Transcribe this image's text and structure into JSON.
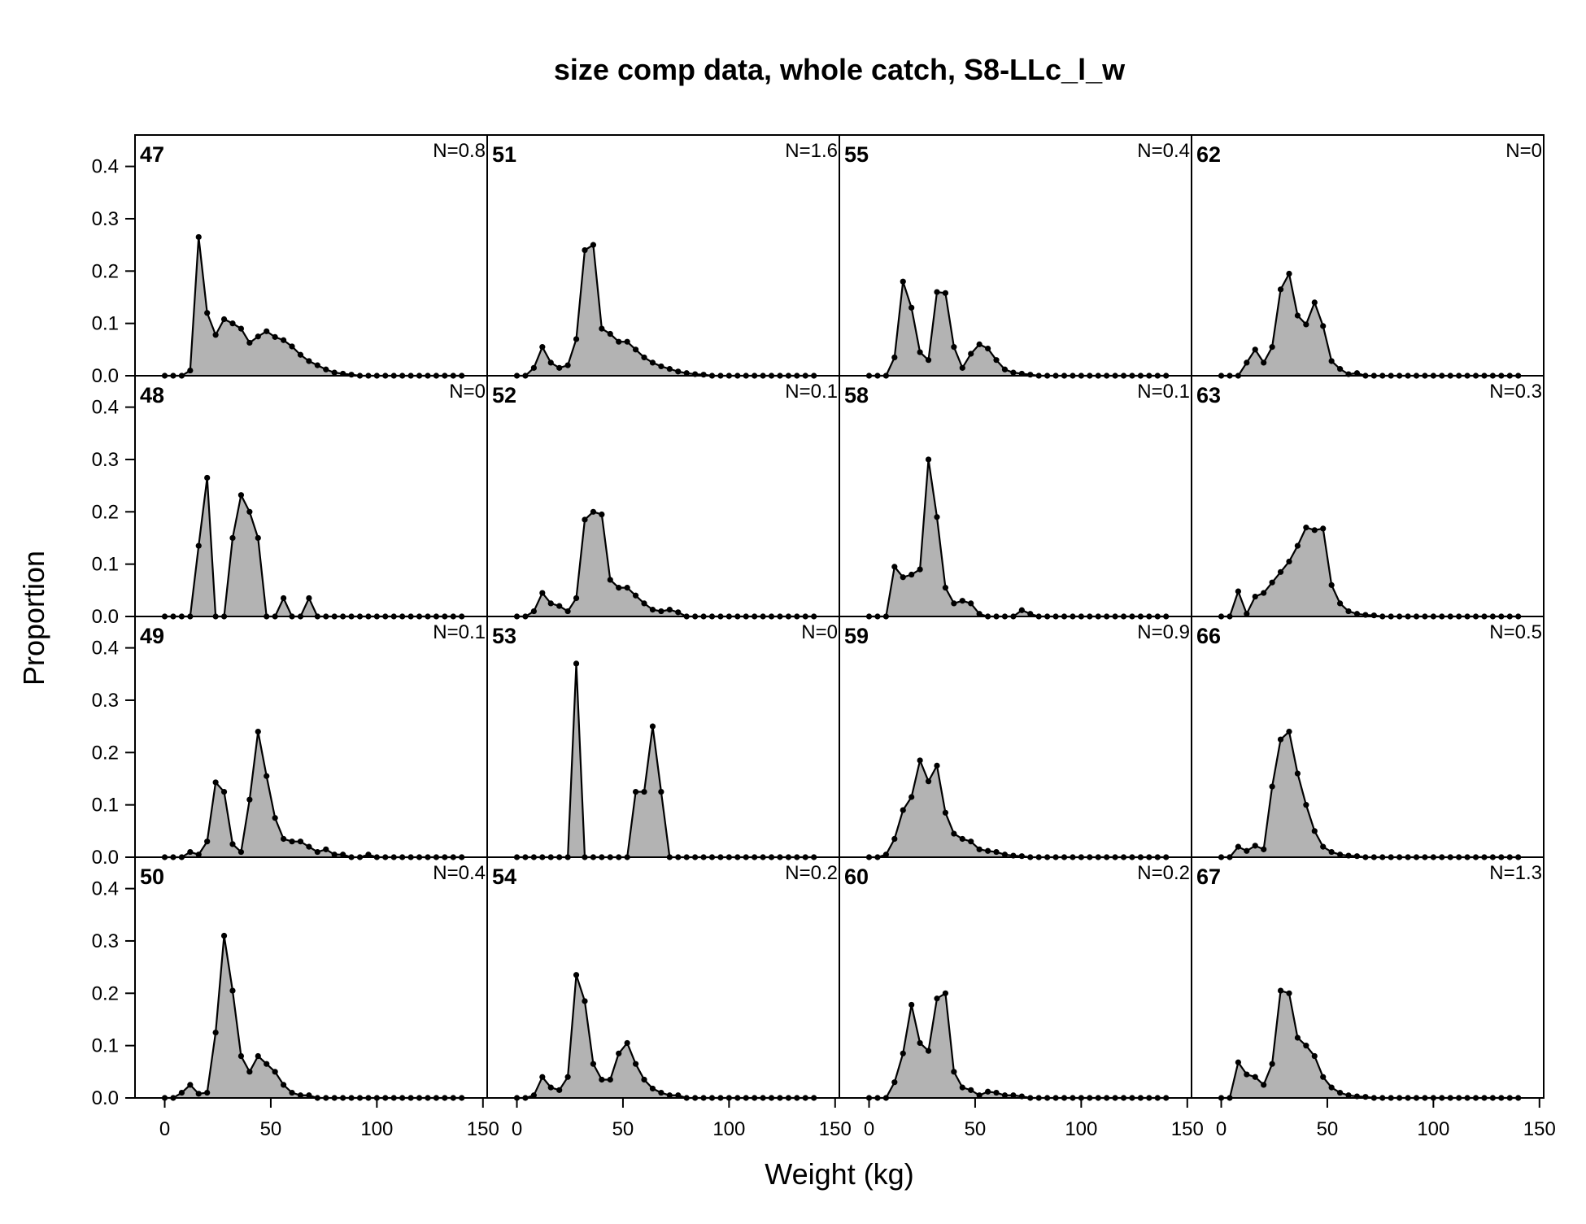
{
  "chart_data": {
    "type": "area",
    "title": "size comp data, whole catch, S8-LLc_l_w",
    "xlabel": "Weight (kg)",
    "ylabel": "Proportion",
    "xlim": [
      -14,
      152
    ],
    "ylim": [
      0,
      0.46
    ],
    "xticks": [
      0,
      50,
      100,
      150
    ],
    "yticks": [
      0.0,
      0.1,
      0.2,
      0.3,
      0.4
    ],
    "ytick_labels": [
      "0.0",
      "0.1",
      "0.2",
      "0.3",
      "0.4"
    ],
    "layout": "4 rows x 4 columns, panels filled column-wise",
    "fill_color": "#b3b3b3",
    "line_color": "#000000",
    "x": [
      0,
      4,
      8,
      12,
      16,
      20,
      24,
      28,
      32,
      36,
      40,
      44,
      48,
      52,
      56,
      60,
      64,
      68,
      72,
      76,
      80,
      84,
      88,
      92,
      96,
      100,
      104,
      108,
      112,
      116,
      120,
      124,
      128,
      132,
      136,
      140
    ],
    "panels": [
      {
        "id": "47",
        "n_label": "N=0.8",
        "values": [
          0,
          0,
          0,
          0.01,
          0.265,
          0.12,
          0.078,
          0.108,
          0.1,
          0.09,
          0.063,
          0.075,
          0.085,
          0.074,
          0.068,
          0.056,
          0.04,
          0.028,
          0.02,
          0.012,
          0.006,
          0.004,
          0.002,
          0,
          0,
          0,
          0,
          0,
          0,
          0,
          0,
          0,
          0,
          0,
          0,
          0
        ]
      },
      {
        "id": "48",
        "n_label": "N=0",
        "values": [
          0,
          0,
          0,
          0,
          0.135,
          0.265,
          0,
          0,
          0.15,
          0.232,
          0.2,
          0.15,
          0,
          0,
          0.035,
          0,
          0,
          0.035,
          0,
          0,
          0,
          0,
          0,
          0,
          0,
          0,
          0,
          0,
          0,
          0,
          0,
          0,
          0,
          0,
          0,
          0
        ]
      },
      {
        "id": "49",
        "n_label": "N=0.1",
        "values": [
          0,
          0,
          0,
          0.01,
          0.005,
          0.03,
          0.143,
          0.125,
          0.025,
          0.01,
          0.11,
          0.24,
          0.155,
          0.075,
          0.035,
          0.03,
          0.03,
          0.02,
          0.01,
          0.015,
          0.005,
          0.005,
          0,
          0,
          0.005,
          0,
          0,
          0,
          0,
          0,
          0,
          0,
          0,
          0,
          0,
          0
        ]
      },
      {
        "id": "50",
        "n_label": "N=0.4",
        "values": [
          0,
          0,
          0.01,
          0.025,
          0.008,
          0.01,
          0.125,
          0.31,
          0.205,
          0.08,
          0.05,
          0.08,
          0.065,
          0.05,
          0.025,
          0.01,
          0.005,
          0.005,
          0,
          0,
          0,
          0,
          0,
          0,
          0,
          0,
          0,
          0,
          0,
          0,
          0,
          0,
          0,
          0,
          0,
          0
        ]
      },
      {
        "id": "51",
        "n_label": "N=1.6",
        "values": [
          0,
          0,
          0.015,
          0.055,
          0.025,
          0.015,
          0.02,
          0.07,
          0.24,
          0.25,
          0.09,
          0.08,
          0.065,
          0.065,
          0.05,
          0.035,
          0.025,
          0.018,
          0.013,
          0.008,
          0.005,
          0.003,
          0.002,
          0,
          0,
          0,
          0,
          0,
          0,
          0,
          0,
          0,
          0,
          0,
          0,
          0
        ]
      },
      {
        "id": "52",
        "n_label": "N=0.1",
        "values": [
          0,
          0,
          0.01,
          0.045,
          0.025,
          0.02,
          0.01,
          0.035,
          0.185,
          0.2,
          0.195,
          0.07,
          0.055,
          0.055,
          0.04,
          0.025,
          0.013,
          0.01,
          0.013,
          0.008,
          0,
          0,
          0,
          0,
          0,
          0,
          0,
          0,
          0,
          0,
          0,
          0,
          0,
          0,
          0,
          0
        ]
      },
      {
        "id": "53",
        "n_label": "N=0",
        "values": [
          0,
          0,
          0,
          0,
          0,
          0,
          0,
          0.37,
          0,
          0,
          0,
          0,
          0,
          0,
          0.125,
          0.125,
          0.25,
          0.125,
          0,
          0,
          0,
          0,
          0,
          0,
          0,
          0,
          0,
          0,
          0,
          0,
          0,
          0,
          0,
          0,
          0,
          0
        ]
      },
      {
        "id": "54",
        "n_label": "N=0.2",
        "values": [
          0,
          0,
          0.005,
          0.04,
          0.02,
          0.015,
          0.04,
          0.235,
          0.185,
          0.065,
          0.035,
          0.035,
          0.085,
          0.105,
          0.065,
          0.035,
          0.018,
          0.01,
          0.005,
          0.005,
          0,
          0,
          0,
          0,
          0,
          0,
          0,
          0,
          0,
          0,
          0,
          0,
          0,
          0,
          0,
          0
        ]
      },
      {
        "id": "55",
        "n_label": "N=0.4",
        "values": [
          0,
          0,
          0,
          0.035,
          0.18,
          0.13,
          0.045,
          0.03,
          0.16,
          0.158,
          0.055,
          0.015,
          0.042,
          0.06,
          0.052,
          0.03,
          0.012,
          0.006,
          0.004,
          0.002,
          0,
          0,
          0,
          0,
          0,
          0,
          0,
          0,
          0,
          0,
          0,
          0,
          0,
          0,
          0,
          0
        ]
      },
      {
        "id": "58",
        "n_label": "N=0.1",
        "values": [
          0,
          0,
          0,
          0.095,
          0.075,
          0.08,
          0.09,
          0.3,
          0.19,
          0.055,
          0.025,
          0.03,
          0.025,
          0.005,
          0,
          0,
          0,
          0,
          0.012,
          0.005,
          0,
          0,
          0,
          0,
          0,
          0,
          0,
          0,
          0,
          0,
          0,
          0,
          0,
          0,
          0,
          0
        ]
      },
      {
        "id": "59",
        "n_label": "N=0.9",
        "values": [
          0,
          0,
          0.005,
          0.035,
          0.09,
          0.115,
          0.185,
          0.145,
          0.175,
          0.085,
          0.045,
          0.035,
          0.03,
          0.015,
          0.012,
          0.01,
          0.005,
          0.003,
          0.002,
          0,
          0,
          0,
          0,
          0,
          0,
          0,
          0,
          0,
          0,
          0,
          0,
          0,
          0,
          0,
          0,
          0
        ]
      },
      {
        "id": "60",
        "n_label": "N=0.2",
        "values": [
          0,
          0,
          0,
          0.03,
          0.085,
          0.178,
          0.105,
          0.09,
          0.19,
          0.2,
          0.05,
          0.02,
          0.015,
          0.005,
          0.012,
          0.01,
          0.005,
          0.005,
          0.003,
          0,
          0,
          0,
          0,
          0,
          0,
          0,
          0,
          0,
          0,
          0,
          0,
          0,
          0,
          0,
          0,
          0
        ]
      },
      {
        "id": "62",
        "n_label": "N=0",
        "values": [
          0,
          0,
          0,
          0.025,
          0.05,
          0.025,
          0.055,
          0.165,
          0.195,
          0.115,
          0.098,
          0.14,
          0.095,
          0.028,
          0.013,
          0.003,
          0.005,
          0,
          0,
          0,
          0,
          0,
          0,
          0,
          0,
          0,
          0,
          0,
          0,
          0,
          0,
          0,
          0,
          0,
          0,
          0
        ]
      },
      {
        "id": "63",
        "n_label": "N=0.3",
        "values": [
          0,
          0,
          0.048,
          0.005,
          0.038,
          0.045,
          0.065,
          0.085,
          0.105,
          0.135,
          0.17,
          0.165,
          0.168,
          0.06,
          0.025,
          0.01,
          0.005,
          0.003,
          0.002,
          0,
          0,
          0,
          0,
          0,
          0,
          0,
          0,
          0,
          0,
          0,
          0,
          0,
          0,
          0,
          0,
          0
        ]
      },
      {
        "id": "66",
        "n_label": "N=0.5",
        "values": [
          0,
          0,
          0.02,
          0.012,
          0.022,
          0.015,
          0.135,
          0.225,
          0.24,
          0.16,
          0.1,
          0.05,
          0.02,
          0.01,
          0.005,
          0.003,
          0.002,
          0,
          0,
          0,
          0,
          0,
          0,
          0,
          0,
          0,
          0,
          0,
          0,
          0,
          0,
          0,
          0,
          0,
          0,
          0
        ]
      },
      {
        "id": "67",
        "n_label": "N=1.3",
        "values": [
          0,
          0,
          0.068,
          0.045,
          0.04,
          0.025,
          0.065,
          0.205,
          0.2,
          0.115,
          0.1,
          0.08,
          0.04,
          0.02,
          0.01,
          0.005,
          0.003,
          0.002,
          0,
          0,
          0,
          0,
          0,
          0,
          0,
          0,
          0,
          0,
          0,
          0,
          0,
          0,
          0,
          0,
          0,
          0
        ]
      }
    ]
  }
}
